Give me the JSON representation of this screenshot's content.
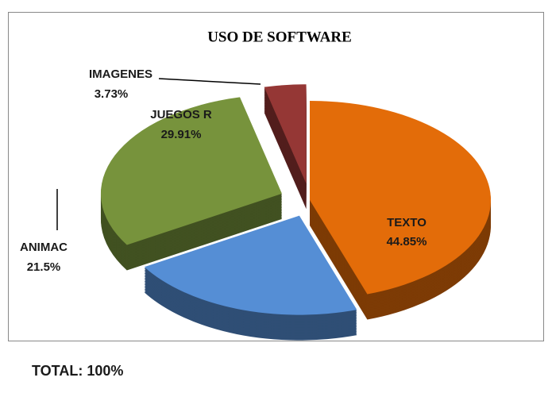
{
  "chart_data": {
    "type": "pie",
    "title": "USO DE SOFTWARE",
    "categories": [
      "TEXTO",
      "ANIMAC",
      "JUEGOS R",
      "IMAGENES"
    ],
    "values": [
      44.85,
      21.5,
      29.91,
      3.73
    ],
    "value_labels": [
      "44.85%",
      "21.5%",
      "29.91%",
      "3.73%"
    ],
    "colors": [
      "#e36c09",
      "#558ed5",
      "#77933c",
      "#953735"
    ],
    "annotation": "TOTAL: 100%"
  }
}
